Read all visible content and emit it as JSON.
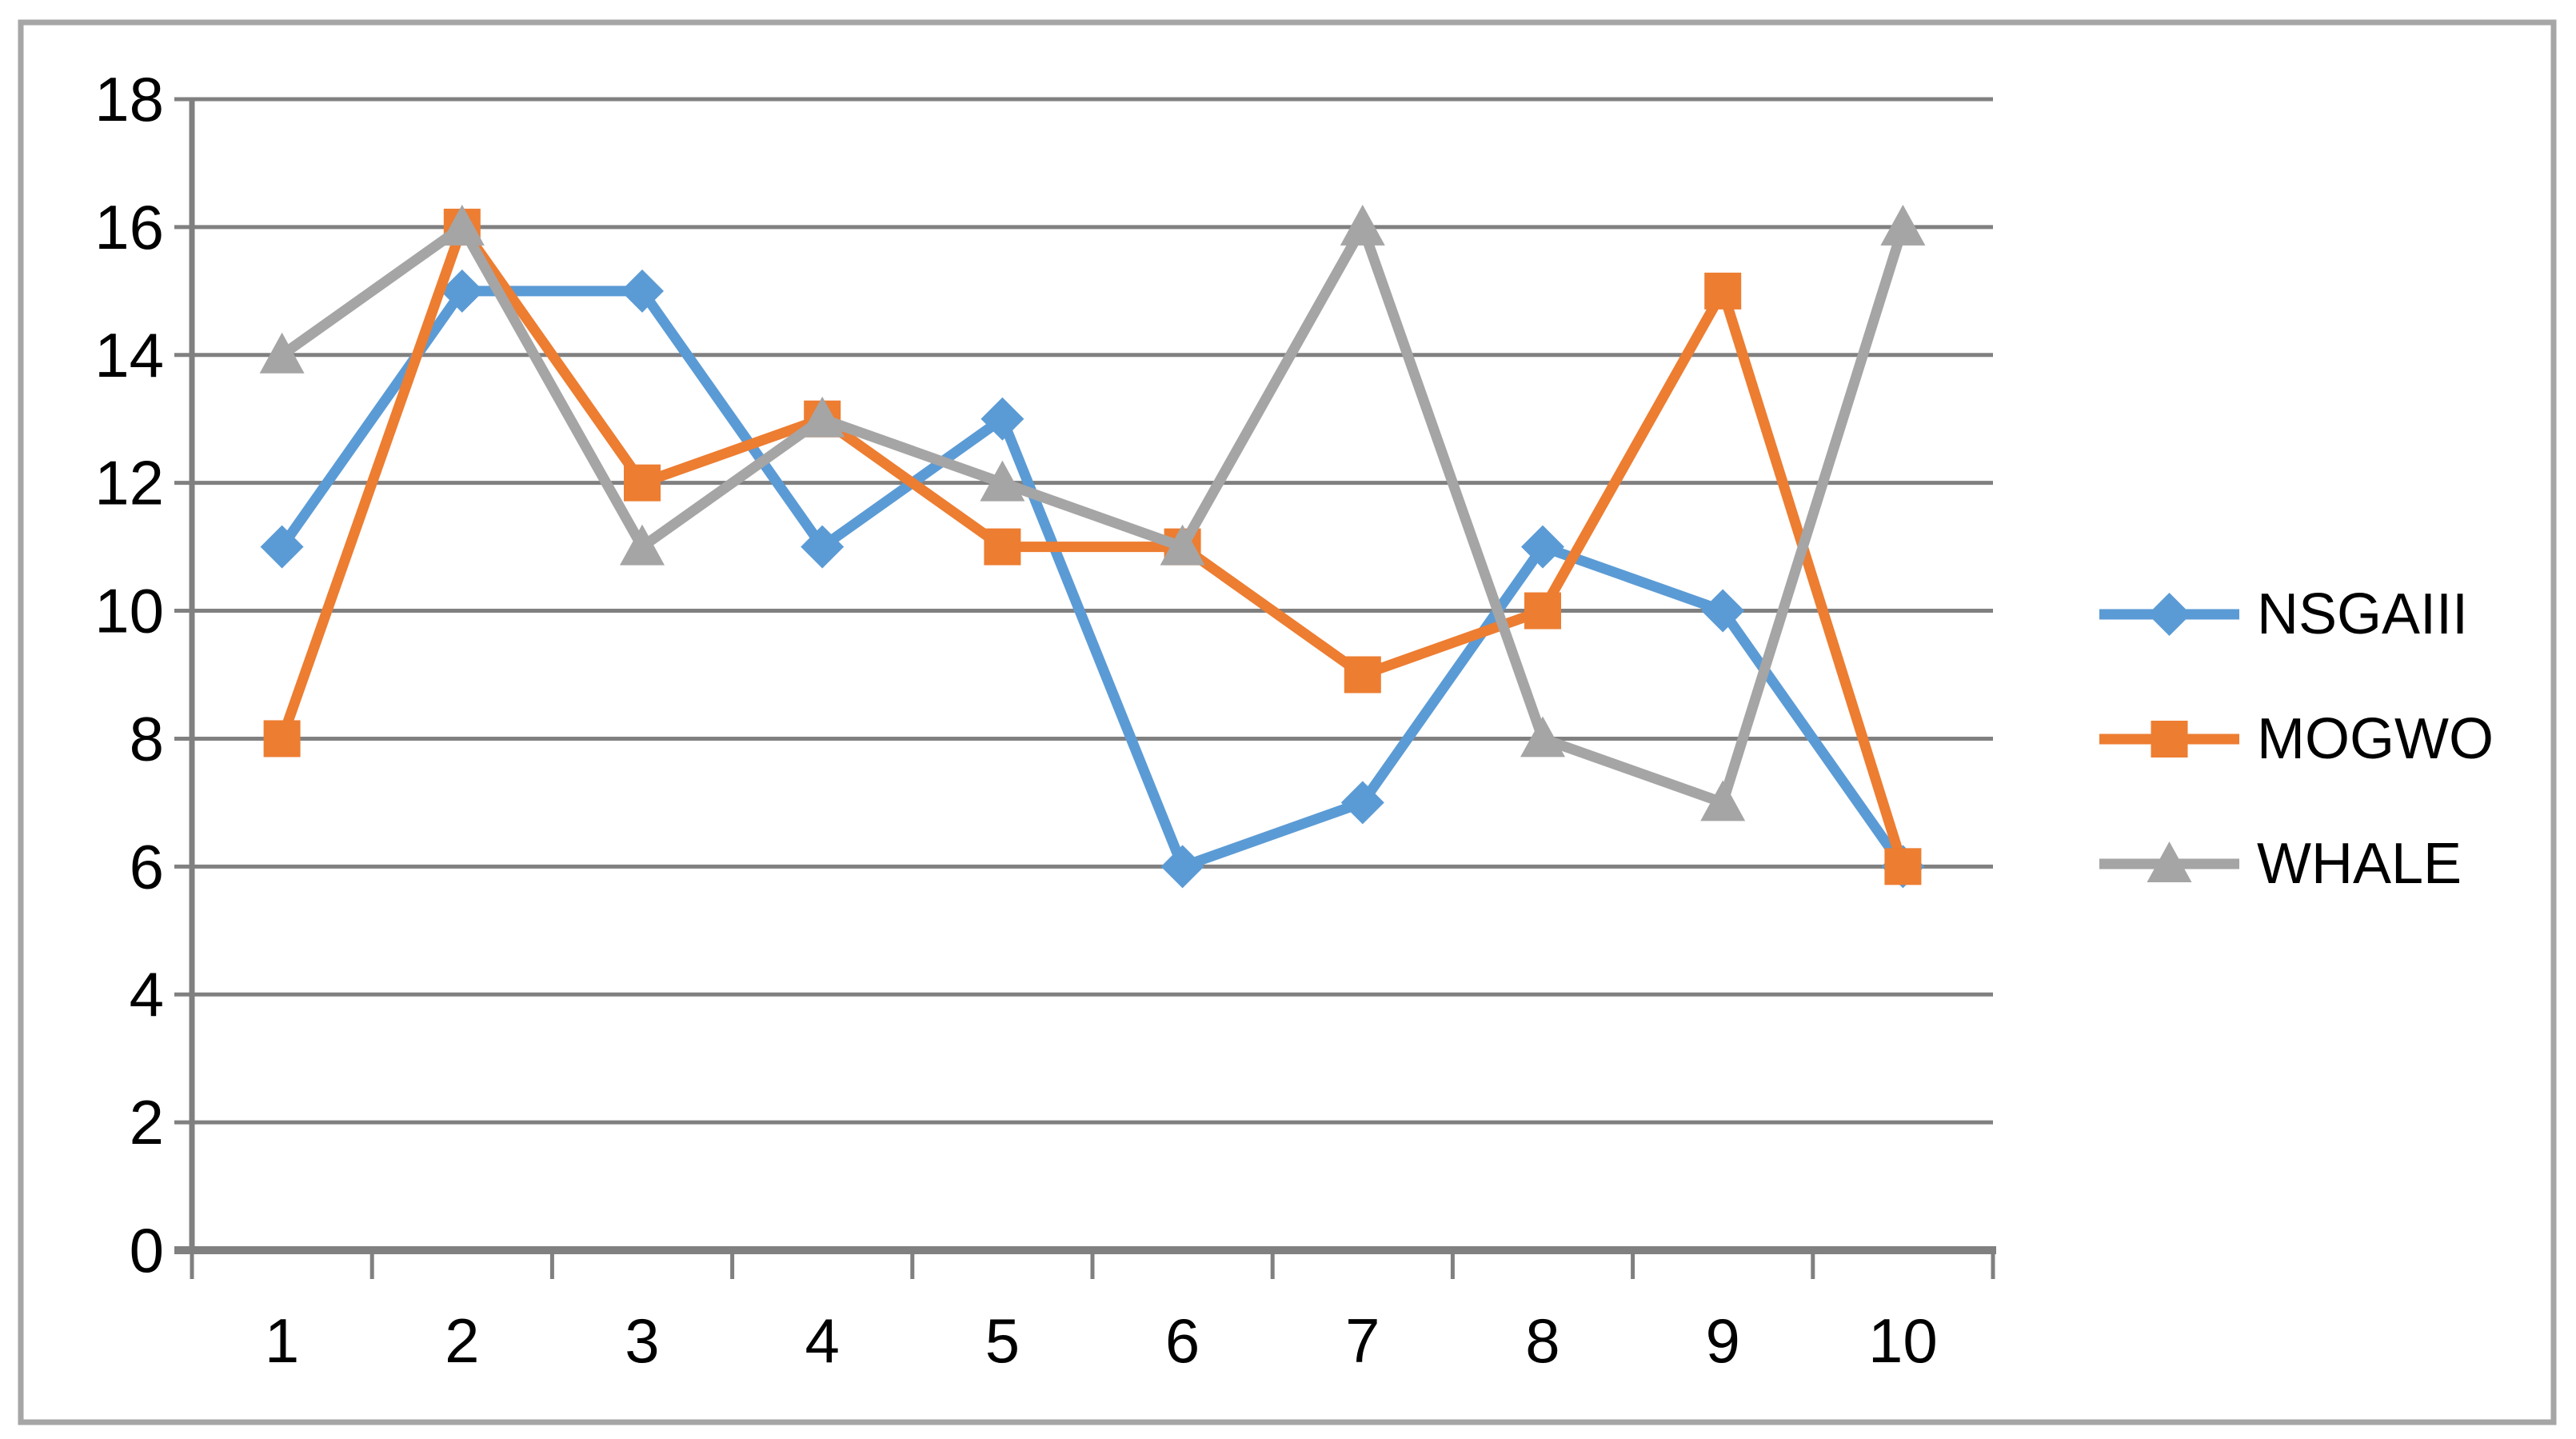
{
  "chart_data": {
    "type": "line",
    "categories": [
      "1",
      "2",
      "3",
      "4",
      "5",
      "6",
      "7",
      "8",
      "9",
      "10"
    ],
    "series": [
      {
        "name": "NSGAIII",
        "color": "#5B9BD5",
        "marker": "diamond",
        "values": [
          11,
          15,
          15,
          11,
          13,
          6,
          7,
          11,
          10,
          6
        ]
      },
      {
        "name": "MOGWO",
        "color": "#ED7D31",
        "marker": "square",
        "values": [
          8,
          16,
          12,
          13,
          11,
          11,
          9,
          10,
          15,
          6
        ]
      },
      {
        "name": "WHALE",
        "color": "#A5A5A5",
        "marker": "triangle",
        "values": [
          14,
          16,
          11,
          13,
          12,
          11,
          16,
          8,
          7,
          16
        ]
      }
    ],
    "title": "",
    "xlabel": "",
    "ylabel": "",
    "ylim": [
      0,
      18
    ],
    "ytick_step": 2,
    "ytick_labels": [
      "0",
      "2",
      "4",
      "6",
      "8",
      "10",
      "12",
      "14",
      "16",
      "18"
    ],
    "grid": true,
    "legend_position": "right",
    "legend_entries": [
      "NSGAIII",
      "MOGWO",
      "WHALE"
    ]
  },
  "style": {
    "background_color": "#FFFFFF",
    "outer_border_color": "#A6A6A6",
    "gridline_color": "#808080",
    "axis_color": "#808080",
    "tick_color": "#808080",
    "text_color": "#000000"
  }
}
